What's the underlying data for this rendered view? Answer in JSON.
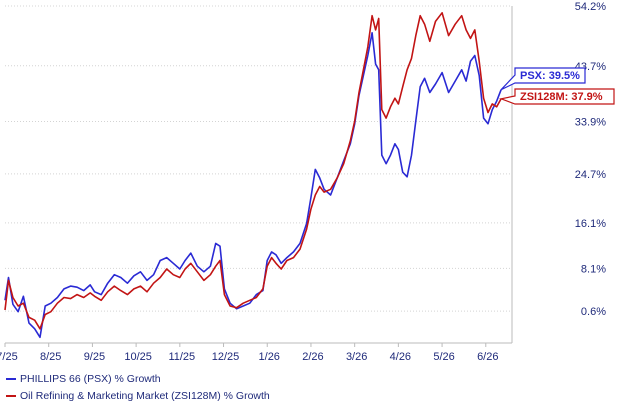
{
  "chart_data": {
    "type": "line",
    "title": "",
    "xlabel": "",
    "ylabel": "",
    "y_axis_side": "right",
    "x_ticks": [
      "7/25",
      "8/25",
      "9/25",
      "10/25",
      "11/25",
      "12/25",
      "1/26",
      "2/26",
      "3/26",
      "4/26",
      "5/26",
      "6/26"
    ],
    "y_ticks": [
      "0.6%",
      "8.1%",
      "16.1%",
      "24.7%",
      "33.9%",
      "43.7%",
      "54.2%"
    ],
    "ylim": [
      -5,
      54.2
    ],
    "grid": "horizontal",
    "legend_placement": "bottom-left",
    "series": [
      {
        "name": "PHILLIPS 66 (PSX) % Growth",
        "color": "#2a2ad4",
        "end_label": "PSX: 39.5%",
        "points": [
          [
            0.0,
            2.5
          ],
          [
            0.08,
            6.5
          ],
          [
            0.18,
            1.8
          ],
          [
            0.3,
            0.5
          ],
          [
            0.42,
            3.2
          ],
          [
            0.55,
            -1.5
          ],
          [
            0.68,
            -2.5
          ],
          [
            0.8,
            -4.0
          ],
          [
            0.92,
            1.5
          ],
          [
            1.05,
            2.0
          ],
          [
            1.2,
            3.0
          ],
          [
            1.35,
            4.5
          ],
          [
            1.5,
            5.0
          ],
          [
            1.65,
            4.8
          ],
          [
            1.8,
            4.2
          ],
          [
            1.95,
            5.2
          ],
          [
            2.05,
            4.0
          ],
          [
            2.2,
            3.5
          ],
          [
            2.35,
            5.5
          ],
          [
            2.5,
            7.0
          ],
          [
            2.65,
            6.5
          ],
          [
            2.8,
            5.5
          ],
          [
            2.95,
            6.8
          ],
          [
            3.1,
            7.5
          ],
          [
            3.25,
            6.0
          ],
          [
            3.4,
            7.0
          ],
          [
            3.55,
            9.5
          ],
          [
            3.7,
            10.0
          ],
          [
            3.85,
            9.0
          ],
          [
            4.0,
            8.0
          ],
          [
            4.12,
            9.5
          ],
          [
            4.25,
            10.8
          ],
          [
            4.4,
            8.5
          ],
          [
            4.55,
            7.5
          ],
          [
            4.7,
            8.5
          ],
          [
            4.82,
            12.5
          ],
          [
            4.92,
            12.0
          ],
          [
            5.02,
            4.5
          ],
          [
            5.15,
            2.0
          ],
          [
            5.3,
            1.0
          ],
          [
            5.45,
            1.5
          ],
          [
            5.6,
            2.0
          ],
          [
            5.75,
            3.5
          ],
          [
            5.9,
            4.2
          ],
          [
            6.0,
            9.5
          ],
          [
            6.1,
            11.0
          ],
          [
            6.2,
            10.5
          ],
          [
            6.32,
            9.0
          ],
          [
            6.45,
            10.0
          ],
          [
            6.6,
            11.0
          ],
          [
            6.75,
            12.5
          ],
          [
            6.9,
            16.0
          ],
          [
            7.0,
            20.5
          ],
          [
            7.1,
            25.5
          ],
          [
            7.2,
            24.0
          ],
          [
            7.3,
            22.0
          ],
          [
            7.45,
            21.0
          ],
          [
            7.6,
            24.0
          ],
          [
            7.75,
            27.0
          ],
          [
            7.9,
            30.0
          ],
          [
            8.0,
            33.5
          ],
          [
            8.1,
            38.5
          ],
          [
            8.2,
            42.0
          ],
          [
            8.3,
            45.5
          ],
          [
            8.4,
            49.5
          ],
          [
            8.48,
            44.0
          ],
          [
            8.55,
            43.0
          ],
          [
            8.62,
            28.0
          ],
          [
            8.72,
            26.5
          ],
          [
            8.82,
            28.0
          ],
          [
            8.92,
            30.0
          ],
          [
            9.0,
            29.0
          ],
          [
            9.1,
            25.0
          ],
          [
            9.2,
            24.2
          ],
          [
            9.3,
            28.0
          ],
          [
            9.4,
            34.0
          ],
          [
            9.5,
            40.0
          ],
          [
            9.6,
            41.5
          ],
          [
            9.72,
            39.0
          ],
          [
            9.85,
            40.5
          ],
          [
            10.0,
            42.5
          ],
          [
            10.15,
            39.0
          ],
          [
            10.3,
            41.0
          ],
          [
            10.45,
            43.0
          ],
          [
            10.55,
            41.0
          ],
          [
            10.65,
            44.5
          ],
          [
            10.75,
            45.5
          ],
          [
            10.85,
            42.0
          ],
          [
            10.95,
            34.5
          ],
          [
            11.05,
            33.5
          ],
          [
            11.15,
            36.0
          ],
          [
            11.25,
            37.5
          ],
          [
            11.35,
            39.5
          ]
        ]
      },
      {
        "name": "Oil Refining & Marketing Market (ZSI128M) % Growth",
        "color": "#c21414",
        "end_label": "ZSI128M: 37.9%",
        "points": [
          [
            0.0,
            0.8
          ],
          [
            0.08,
            6.0
          ],
          [
            0.18,
            3.0
          ],
          [
            0.3,
            1.5
          ],
          [
            0.42,
            2.0
          ],
          [
            0.55,
            -0.5
          ],
          [
            0.68,
            -1.0
          ],
          [
            0.8,
            -2.5
          ],
          [
            0.92,
            0.0
          ],
          [
            1.05,
            0.5
          ],
          [
            1.2,
            2.0
          ],
          [
            1.35,
            3.0
          ],
          [
            1.5,
            2.8
          ],
          [
            1.65,
            3.5
          ],
          [
            1.8,
            3.0
          ],
          [
            1.95,
            3.8
          ],
          [
            2.05,
            3.2
          ],
          [
            2.2,
            2.5
          ],
          [
            2.35,
            4.0
          ],
          [
            2.5,
            5.0
          ],
          [
            2.65,
            4.2
          ],
          [
            2.8,
            3.5
          ],
          [
            2.95,
            4.5
          ],
          [
            3.1,
            5.0
          ],
          [
            3.25,
            4.0
          ],
          [
            3.4,
            5.5
          ],
          [
            3.55,
            6.5
          ],
          [
            3.7,
            8.0
          ],
          [
            3.85,
            7.0
          ],
          [
            4.0,
            6.5
          ],
          [
            4.12,
            8.0
          ],
          [
            4.25,
            9.0
          ],
          [
            4.4,
            7.5
          ],
          [
            4.55,
            6.0
          ],
          [
            4.7,
            7.0
          ],
          [
            4.82,
            8.5
          ],
          [
            4.92,
            9.5
          ],
          [
            5.02,
            3.5
          ],
          [
            5.15,
            1.5
          ],
          [
            5.3,
            1.2
          ],
          [
            5.45,
            2.0
          ],
          [
            5.6,
            2.5
          ],
          [
            5.75,
            3.0
          ],
          [
            5.9,
            4.5
          ],
          [
            6.0,
            8.5
          ],
          [
            6.1,
            10.0
          ],
          [
            6.2,
            9.0
          ],
          [
            6.32,
            8.0
          ],
          [
            6.45,
            9.5
          ],
          [
            6.6,
            10.0
          ],
          [
            6.75,
            11.5
          ],
          [
            6.9,
            15.0
          ],
          [
            7.0,
            18.5
          ],
          [
            7.1,
            21.0
          ],
          [
            7.2,
            22.5
          ],
          [
            7.3,
            21.5
          ],
          [
            7.45,
            22.0
          ],
          [
            7.6,
            24.0
          ],
          [
            7.75,
            26.5
          ],
          [
            7.9,
            30.5
          ],
          [
            8.0,
            34.0
          ],
          [
            8.1,
            39.0
          ],
          [
            8.2,
            43.0
          ],
          [
            8.3,
            47.0
          ],
          [
            8.4,
            52.5
          ],
          [
            8.48,
            50.0
          ],
          [
            8.55,
            52.0
          ],
          [
            8.62,
            36.0
          ],
          [
            8.72,
            34.5
          ],
          [
            8.82,
            36.5
          ],
          [
            8.92,
            38.0
          ],
          [
            9.0,
            37.0
          ],
          [
            9.1,
            40.0
          ],
          [
            9.2,
            43.0
          ],
          [
            9.3,
            45.0
          ],
          [
            9.4,
            49.0
          ],
          [
            9.5,
            52.5
          ],
          [
            9.6,
            51.0
          ],
          [
            9.72,
            48.0
          ],
          [
            9.85,
            51.5
          ],
          [
            10.0,
            53.0
          ],
          [
            10.15,
            49.0
          ],
          [
            10.3,
            51.0
          ],
          [
            10.45,
            52.5
          ],
          [
            10.55,
            50.0
          ],
          [
            10.65,
            48.5
          ],
          [
            10.75,
            50.0
          ],
          [
            10.85,
            44.5
          ],
          [
            10.95,
            38.0
          ],
          [
            11.05,
            35.5
          ],
          [
            11.15,
            37.0
          ],
          [
            11.25,
            36.5
          ],
          [
            11.35,
            37.9
          ]
        ]
      }
    ]
  },
  "legend": {
    "items": [
      {
        "label": "PHILLIPS 66 (PSX) % Growth",
        "color": "#2a2ad4"
      },
      {
        "label": "Oil Refining & Marketing Market (ZSI128M) % Growth",
        "color": "#c21414"
      }
    ]
  },
  "colors": {
    "axis_text": "#1f2a7a",
    "grid": "#d4d4d4",
    "axis_line": "#bbbbbb"
  }
}
